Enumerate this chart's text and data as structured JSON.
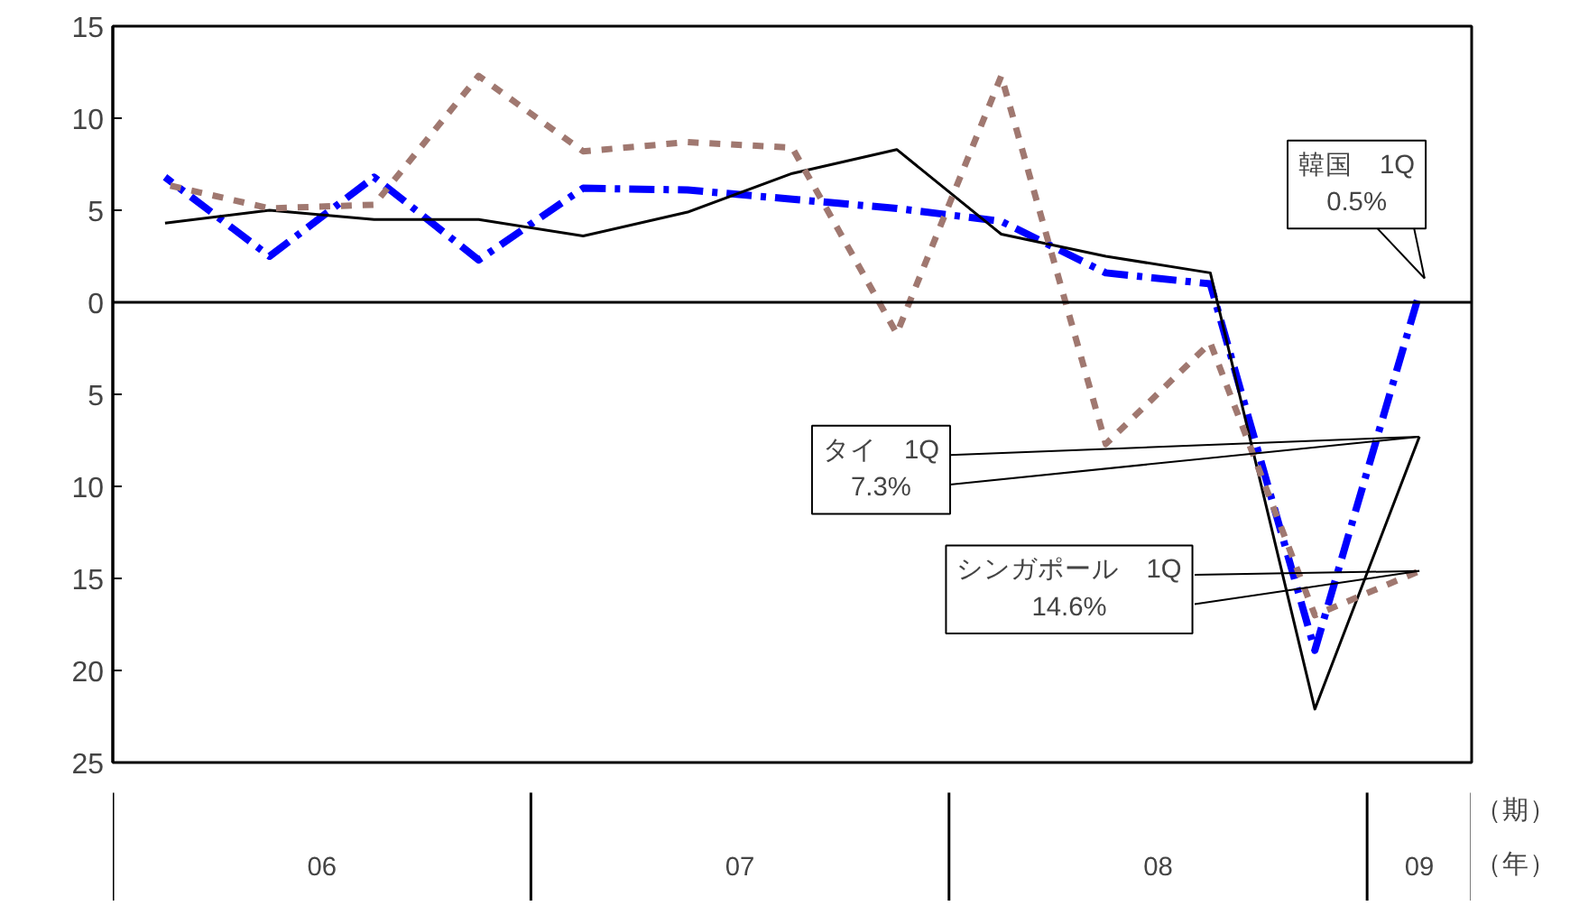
{
  "chart_data": {
    "type": "line",
    "categories": [
      null,
      null,
      null,
      null,
      null,
      null,
      null,
      null,
      null,
      null,
      null,
      null,
      null
    ],
    "series": [
      {
        "color": "#0000ff",
        "line_style": "dashed",
        "values": [
          6.8,
          2.5,
          6.8,
          2.3,
          6.2,
          6.1,
          5.6,
          5.1,
          4.4,
          1.6,
          1.0,
          -18.9,
          0.5
        ]
      },
      {
        "color": "#000000",
        "line_style": "solid",
        "values": [
          4.3,
          5.0,
          4.5,
          4.5,
          3.6,
          4.9,
          7.0,
          8.3,
          3.7,
          2.5,
          1.6,
          -22.1,
          -7.3
        ]
      },
      {
        "color": "#a07870",
        "line_style": "dotted",
        "values": [
          6.4,
          5.1,
          5.3,
          12.3,
          8.2,
          8.7,
          8.4,
          -1.7,
          12.3,
          -7.7,
          -2.2,
          -17.0,
          -14.6
        ]
      }
    ],
    "ylim": [
      -25,
      15
    ],
    "yticks": [
      {
        "value": -25,
        "label": "25"
      },
      {
        "value": -20,
        "label": "20"
      },
      {
        "value": -15,
        "label": "15"
      },
      {
        "value": -10,
        "label": "10"
      },
      {
        "value": -5,
        "label": "5"
      },
      0,
      5,
      10,
      15
    ],
    "ref_lines": [
      {
        "axis": "y",
        "value": 0,
        "color": "#000000"
      }
    ],
    "xlabel": "（年）",
    "annotations": [
      "韓国　1Q\n0.5%",
      "タイ　1Q\n7.3%",
      "シンガポール　1Q\n14.6%",
      "（期）",
      "06",
      "07",
      "08",
      "09"
    ],
    "grid": false,
    "marker": "none"
  }
}
